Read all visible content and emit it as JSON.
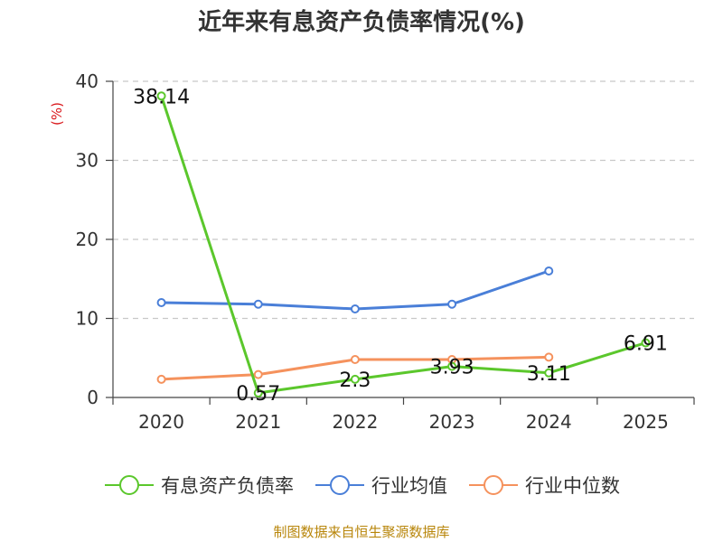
{
  "chart_data": {
    "type": "line",
    "title": "近年来有息资产负债率情况(%)",
    "ylabel": "(%)",
    "xlabel": "",
    "categories": [
      "2020",
      "2021",
      "2022",
      "2023",
      "2024",
      "2025"
    ],
    "ylim": [
      0,
      40
    ],
    "yticks": [
      "0",
      "10",
      "20",
      "30",
      "40"
    ],
    "grid": true,
    "legend_position": "bottom",
    "series": [
      {
        "name": "有息资产负债率",
        "color": "#5bc72c",
        "values": [
          38.14,
          0.57,
          2.3,
          3.93,
          3.11,
          6.91
        ],
        "labels": [
          "38.14",
          "0.57",
          "2.3",
          "3.93",
          "3.11",
          "6.91"
        ]
      },
      {
        "name": "行业均值",
        "color": "#4a7fd8",
        "values": [
          12.0,
          11.8,
          11.2,
          11.8,
          16.0,
          null
        ]
      },
      {
        "name": "行业中位数",
        "color": "#f5925d",
        "values": [
          2.3,
          2.9,
          4.8,
          4.8,
          5.1,
          null
        ]
      }
    ]
  },
  "colors": {
    "unit_label": "#d9171b",
    "source": "#b8860b"
  },
  "source": "制图数据来自恒生聚源数据库"
}
